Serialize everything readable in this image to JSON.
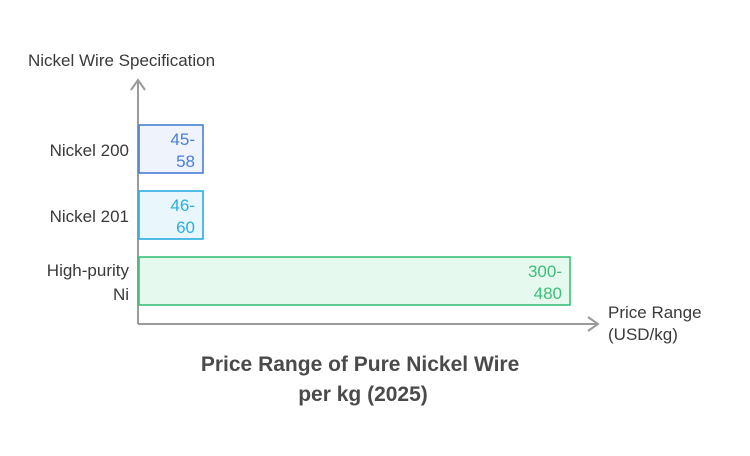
{
  "chart_data": {
    "type": "bar",
    "orientation": "horizontal",
    "title": "Price Range of Pure Nickel Wire per kg (2025)",
    "xlabel": "Price Range (USD/kg)",
    "ylabel": "Nickel Wire Specification",
    "grid": false,
    "legend": "none",
    "categories": [
      "Nickel 200",
      "Nickel 201",
      "High-purity Ni"
    ],
    "ranges": [
      {
        "category": "Nickel 200",
        "low": 45,
        "high": 58,
        "label": "45-58"
      },
      {
        "category": "Nickel 201",
        "low": 46,
        "high": 60,
        "label": "46-60"
      },
      {
        "category": "High-purity Ni",
        "low": 300,
        "high": 480,
        "label": "300-480"
      }
    ],
    "colors": {
      "Nickel 200": {
        "stroke": "#4a7fd6",
        "fill": "#eef3fc",
        "text": "#4a7fd6"
      },
      "Nickel 201": {
        "stroke": "#27aee0",
        "fill": "#e9f7fc",
        "text": "#27aee0"
      },
      "High-purity Ni": {
        "stroke": "#3dbf7a",
        "fill": "#e6f9ee",
        "text": "#3dbf7a"
      }
    },
    "axis_color": "#9a9a9a"
  }
}
